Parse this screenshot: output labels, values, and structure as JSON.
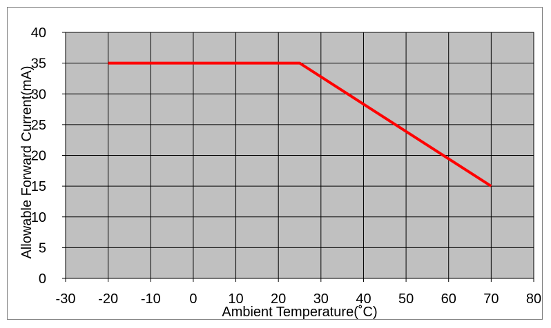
{
  "chart_data": {
    "type": "line",
    "xlabel": "Ambient Temperature(˚C)",
    "ylabel": "Allowable Forward Current(mA)",
    "xlim": [
      -30,
      80
    ],
    "ylim": [
      0,
      40
    ],
    "x_ticks": [
      -30,
      -20,
      -10,
      0,
      10,
      20,
      30,
      40,
      50,
      60,
      70,
      80
    ],
    "y_ticks": [
      0,
      5,
      10,
      15,
      20,
      25,
      30,
      35,
      40
    ],
    "grid": true,
    "legend": "none",
    "series": [
      {
        "x": [
          -20,
          25,
          70
        ],
        "y": [
          35,
          35,
          15
        ]
      }
    ],
    "colors": {
      "plot_background": "#c0c0c0",
      "grid": "#000000",
      "line": "#ff0000"
    }
  }
}
